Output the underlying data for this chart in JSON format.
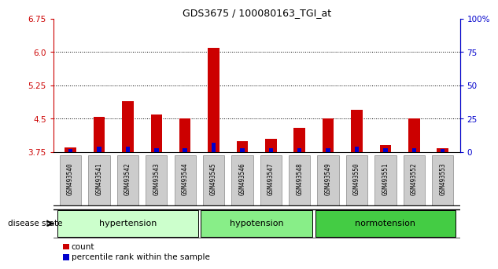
{
  "title": "GDS3675 / 100080163_TGI_at",
  "samples": [
    "GSM493540",
    "GSM493541",
    "GSM493542",
    "GSM493543",
    "GSM493544",
    "GSM493545",
    "GSM493546",
    "GSM493547",
    "GSM493548",
    "GSM493549",
    "GSM493550",
    "GSM493551",
    "GSM493552",
    "GSM493553"
  ],
  "count_values": [
    3.85,
    4.55,
    4.9,
    4.6,
    4.5,
    6.1,
    4.0,
    4.05,
    4.3,
    4.5,
    4.7,
    3.9,
    4.5,
    3.83
  ],
  "percentile_values": [
    2,
    4,
    4,
    3,
    3,
    7,
    3,
    3,
    3,
    3,
    4,
    3,
    3,
    2
  ],
  "ylim_left": [
    3.75,
    6.75
  ],
  "ylim_right": [
    0,
    100
  ],
  "yticks_left": [
    3.75,
    4.5,
    5.25,
    6.0,
    6.75
  ],
  "yticks_right": [
    0,
    25,
    50,
    75,
    100
  ],
  "ytick_right_labels": [
    "0",
    "25",
    "50",
    "75",
    "100%"
  ],
  "grid_lines": [
    4.5,
    5.25,
    6.0
  ],
  "ylabel_left_color": "#cc0000",
  "ylabel_right_color": "#0000cc",
  "bar_color_red": "#cc0000",
  "bar_color_blue": "#0000cc",
  "groups": [
    {
      "label": "hypertension",
      "start": 0,
      "end": 4
    },
    {
      "label": "hypotension",
      "start": 5,
      "end": 8
    },
    {
      "label": "normotension",
      "start": 9,
      "end": 13
    }
  ],
  "group_colors": [
    "#ccffcc",
    "#88ee88",
    "#44cc44"
  ],
  "disease_state_label": "disease state",
  "legend_count": "count",
  "legend_percentile": "percentile rank within the sample",
  "background_color": "#ffffff",
  "tick_label_bg": "#cccccc",
  "tick_label_edge": "#888888"
}
